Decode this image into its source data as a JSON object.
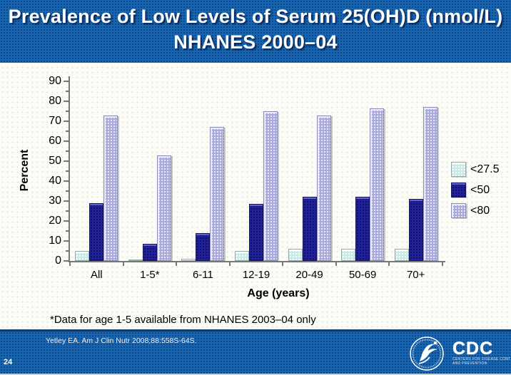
{
  "slide": {
    "title_line1": "Prevalence of Low Levels of Serum 25(OH)D (nmol/L)",
    "title_line2": "NHANES 2000–04",
    "footnote": "*Data for age 1-5 available from NHANES 2003–04 only",
    "citation": "Yetley EA. Am J Clin Nutr 2008;88:558S-64S.",
    "page_number": "24"
  },
  "logos": {
    "hhs_icon": "hhs-eagle-logo",
    "cdc_text": "CDC",
    "cdc_tagline_line1": "CENTERS FOR DISEASE CONTROL",
    "cdc_tagline_line2": "AND PREVENTION"
  },
  "colors": {
    "banner_blue": "#1766B2",
    "footer_blue": "#1766B2",
    "footer_border_navy": "#0D3B6E",
    "series_under27": "#C9EAE7",
    "series_under50": "#20209A",
    "series_under80": "#A9A9DC",
    "axis_gray": "#777777",
    "title_text": "#FFFFFF"
  },
  "chart_data": {
    "type": "bar",
    "title": "",
    "categories": [
      "All",
      "1-5*",
      "6-11",
      "12-19",
      "20-49",
      "50-69",
      "70+"
    ],
    "series": [
      {
        "name": "<27.5",
        "color": "#C9EAE7",
        "values": [
          5,
          0.5,
          1,
          5,
          6,
          6,
          6
        ]
      },
      {
        "name": "<50",
        "color": "#20209A",
        "values": [
          29,
          8.5,
          14,
          28.5,
          32,
          32,
          31
        ]
      },
      {
        "name": "<80",
        "color": "#A9A9DC",
        "values": [
          73,
          53,
          67,
          75,
          73,
          76.5,
          77
        ]
      }
    ],
    "xlabel": "Age (years)",
    "ylabel": "Percent",
    "ylim": [
      0,
      90
    ],
    "ytick_step": 10,
    "ytick_minor_step": 5,
    "grid": false,
    "legend_position": "right"
  }
}
